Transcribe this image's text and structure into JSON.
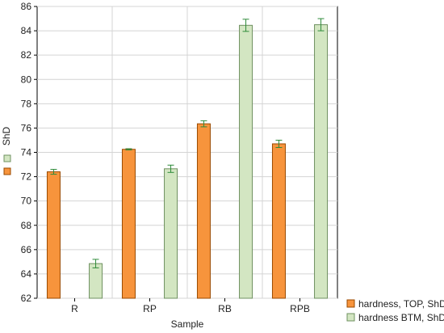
{
  "chart_data": {
    "type": "bar",
    "xlabel": "Sample",
    "ylabel": "ShD",
    "categories": [
      "R",
      "RP",
      "RB",
      "RPB"
    ],
    "ylim": [
      62,
      86
    ],
    "yticks": [
      62,
      64,
      66,
      68,
      70,
      72,
      74,
      76,
      78,
      80,
      82,
      84,
      86
    ],
    "grid": true,
    "legend_position": "bottom-right",
    "series": [
      {
        "name": "hardness, TOP, ShD",
        "color": "#f7943c",
        "edge_color": "#9a4a00",
        "values": [
          72.4,
          74.25,
          76.35,
          74.7
        ],
        "errors": [
          0.2,
          0.05,
          0.25,
          0.3
        ]
      },
      {
        "name": "hardness BTM, ShD",
        "color": "#d3e6c2",
        "edge_color": "#6f9160",
        "values": [
          64.85,
          72.65,
          84.45,
          84.5
        ],
        "errors": [
          0.35,
          0.3,
          0.5,
          0.5
        ]
      }
    ],
    "error_bar_color": "#2e8b3a"
  }
}
